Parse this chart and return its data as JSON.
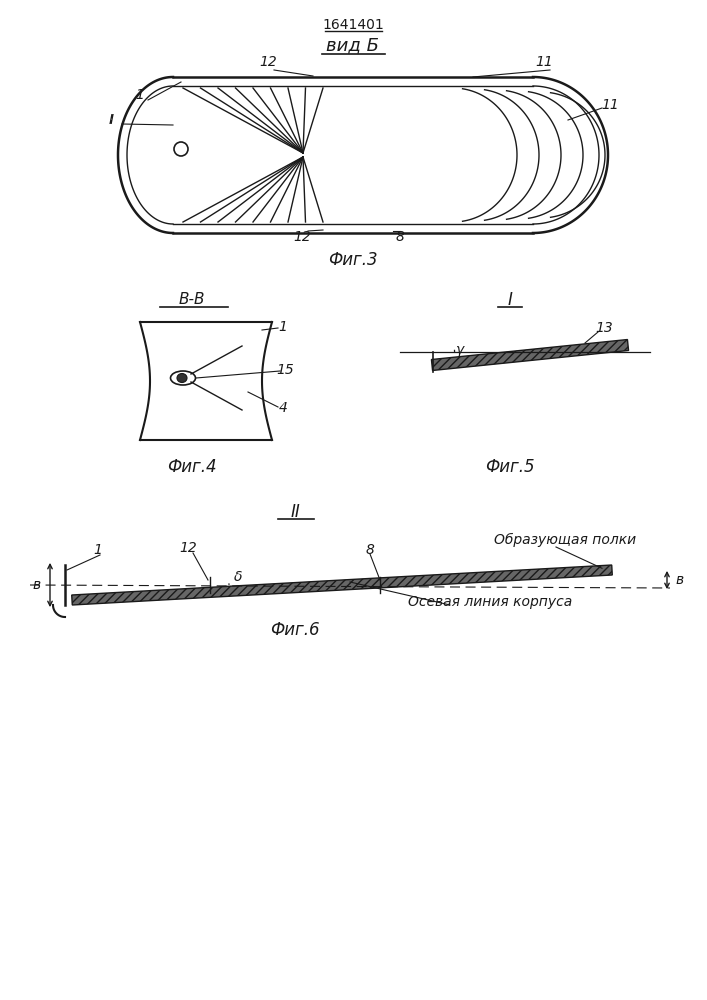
{
  "patent_number": "1641401",
  "view_label": "вид Б",
  "fig3_label": "Фиг.3",
  "fig4_label": "Фиг.4",
  "fig5_label": "Фиг.5",
  "fig6_label": "Фиг.6",
  "section_BB": "В-В",
  "section_I": "I",
  "section_II": "II",
  "label_obrazuyushchaya": "Образующая полки",
  "label_osevaya": "Осевая линия корпуса",
  "line_color": "#1a1a1a",
  "label_color": "#1a1a1a"
}
